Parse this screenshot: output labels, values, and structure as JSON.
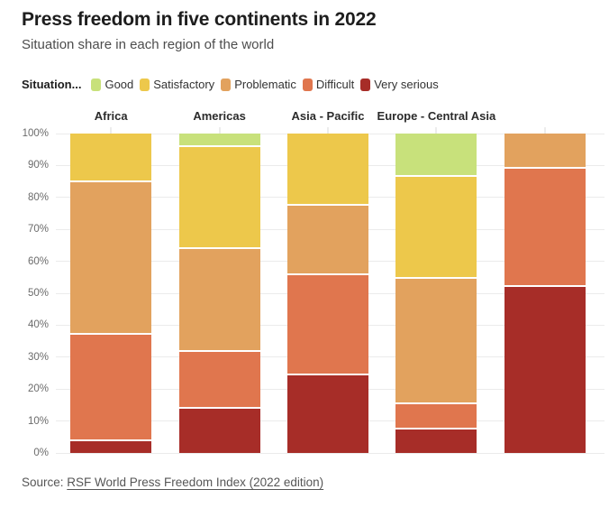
{
  "header": {
    "title": "Press freedom in five continents in 2022",
    "subtitle": "Situation share in each region of the world"
  },
  "legend": {
    "label": "Situation...",
    "items": [
      {
        "label": "Good",
        "color": "#c8e17b"
      },
      {
        "label": "Satisfactory",
        "color": "#edc84b"
      },
      {
        "label": "Problematic",
        "color": "#e2a25e"
      },
      {
        "label": "Difficult",
        "color": "#e0764e"
      },
      {
        "label": "Very serious",
        "color": "#a72d28"
      }
    ]
  },
  "source": {
    "prefix": "Source: ",
    "link_text": "RSF World Press Freedom Index (2022 edition)"
  },
  "chart_data": {
    "type": "bar",
    "stacked": true,
    "unit": "percent",
    "title": "Press freedom in five continents in 2022",
    "subtitle": "Situation share in each region of the world",
    "categories": [
      "Africa",
      "Americas",
      "Asia - Pacific",
      "Europe - Central Asia",
      ""
    ],
    "series": [
      {
        "name": "Good",
        "color": "#c8e17b",
        "values": [
          0,
          3.6,
          0,
          12.9,
          0
        ]
      },
      {
        "name": "Satisfactory",
        "color": "#edc84b",
        "values": [
          14.6,
          32.1,
          21.9,
          32.1,
          0
        ]
      },
      {
        "name": "Problematic",
        "color": "#e2a25e",
        "values": [
          47.9,
          32.1,
          21.9,
          39.2,
          10.5
        ]
      },
      {
        "name": "Difficult",
        "color": "#e0764e",
        "values": [
          33.3,
          17.9,
          31.2,
          8.0,
          36.9
        ]
      },
      {
        "name": "Very serious",
        "color": "#a72d28",
        "values": [
          4.2,
          14.3,
          25.0,
          7.8,
          52.6
        ]
      }
    ],
    "y_axis": {
      "min": 0,
      "max": 100,
      "tick_labels": [
        "0%",
        "10%",
        "20%",
        "30%",
        "40%",
        "50%",
        "60%",
        "70%",
        "80%",
        "90%",
        "100%"
      ]
    },
    "grid": true,
    "legend_position": "top",
    "bar_orientation": "vertical"
  }
}
